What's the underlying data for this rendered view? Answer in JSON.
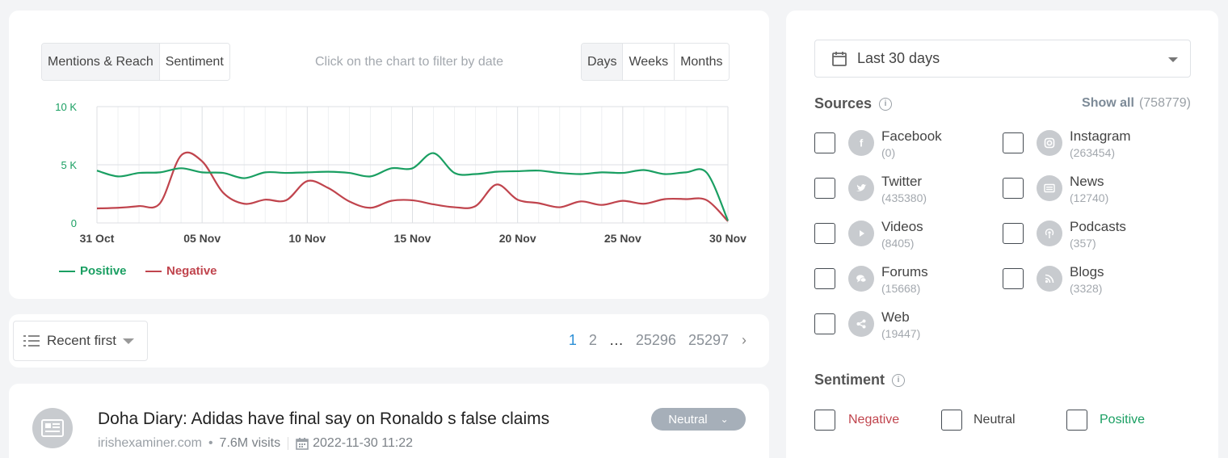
{
  "chart_panel": {
    "metric_tabs": [
      "Mentions & Reach",
      "Sentiment"
    ],
    "active_metric": "Sentiment",
    "hint": "Click on the chart to filter by date",
    "period_tabs": [
      "Days",
      "Weeks",
      "Months"
    ],
    "active_period": "Days"
  },
  "chart_data": {
    "type": "line",
    "x": [
      "31 Oct",
      "01 Nov",
      "02 Nov",
      "03 Nov",
      "04 Nov",
      "05 Nov",
      "06 Nov",
      "07 Nov",
      "08 Nov",
      "09 Nov",
      "10 Nov",
      "11 Nov",
      "12 Nov",
      "13 Nov",
      "14 Nov",
      "15 Nov",
      "16 Nov",
      "17 Nov",
      "18 Nov",
      "19 Nov",
      "20 Nov",
      "21 Nov",
      "22 Nov",
      "23 Nov",
      "24 Nov",
      "25 Nov",
      "26 Nov",
      "27 Nov",
      "28 Nov",
      "29 Nov",
      "30 Nov"
    ],
    "x_tick_labels": [
      "31 Oct",
      "05 Nov",
      "10 Nov",
      "15 Nov",
      "20 Nov",
      "25 Nov",
      "30 Nov"
    ],
    "y_tick_labels": [
      "10 K",
      "5 K",
      "0"
    ],
    "ylim": [
      0,
      10000
    ],
    "grid": true,
    "series": [
      {
        "name": "Positive",
        "color": "#1a9f62",
        "values": [
          4500,
          4000,
          4300,
          4350,
          4700,
          4350,
          4300,
          3850,
          4350,
          4300,
          4350,
          4400,
          4300,
          4000,
          4700,
          4700,
          6000,
          4300,
          4200,
          4400,
          4450,
          4500,
          4300,
          4200,
          4350,
          4300,
          4550,
          4200,
          4350,
          4300,
          200
        ]
      },
      {
        "name": "Negative",
        "color": "#c0444d",
        "values": [
          1250,
          1300,
          1450,
          1700,
          5800,
          5300,
          2600,
          1650,
          2000,
          1950,
          3600,
          3000,
          1850,
          1300,
          1900,
          1950,
          1600,
          1350,
          1450,
          3300,
          2000,
          1700,
          1350,
          1850,
          1550,
          1900,
          1650,
          2050,
          2050,
          1950,
          150
        ]
      }
    ],
    "legend_position": "bottom-left"
  },
  "list_toolbar": {
    "sort_label": "Recent first",
    "pages": [
      "1",
      "2",
      "…",
      "25296",
      "25297"
    ],
    "current_page": "1"
  },
  "result": {
    "title": "Doha Diary: Adidas have final say on Ronaldo s false claims",
    "source": "irishexaminer.com",
    "visits": "7.6M visits",
    "date": "2022-11-30 11:22",
    "sentiment": "Neutral"
  },
  "filters": {
    "date_range": "Last 30 days",
    "sources_title": "Sources",
    "show_all_label": "Show all",
    "show_all_count": "(758779)",
    "sources": [
      {
        "name": "Facebook",
        "count": "(0)",
        "icon": "facebook-icon"
      },
      {
        "name": "Instagram",
        "count": "(263454)",
        "icon": "instagram-icon"
      },
      {
        "name": "Twitter",
        "count": "(435380)",
        "icon": "twitter-icon"
      },
      {
        "name": "News",
        "count": "(12740)",
        "icon": "news-icon"
      },
      {
        "name": "Videos",
        "count": "(8405)",
        "icon": "play-icon"
      },
      {
        "name": "Podcasts",
        "count": "(357)",
        "icon": "podcast-icon"
      },
      {
        "name": "Forums",
        "count": "(15668)",
        "icon": "forum-icon"
      },
      {
        "name": "Blogs",
        "count": "(3328)",
        "icon": "rss-icon"
      },
      {
        "name": "Web",
        "count": "(19447)",
        "icon": "share-icon"
      }
    ],
    "sentiment_title": "Sentiment",
    "sentiments": [
      {
        "label": "Negative",
        "color": "#c0444d"
      },
      {
        "label": "Neutral",
        "color": "#444444"
      },
      {
        "label": "Positive",
        "color": "#1a9f62"
      }
    ]
  }
}
